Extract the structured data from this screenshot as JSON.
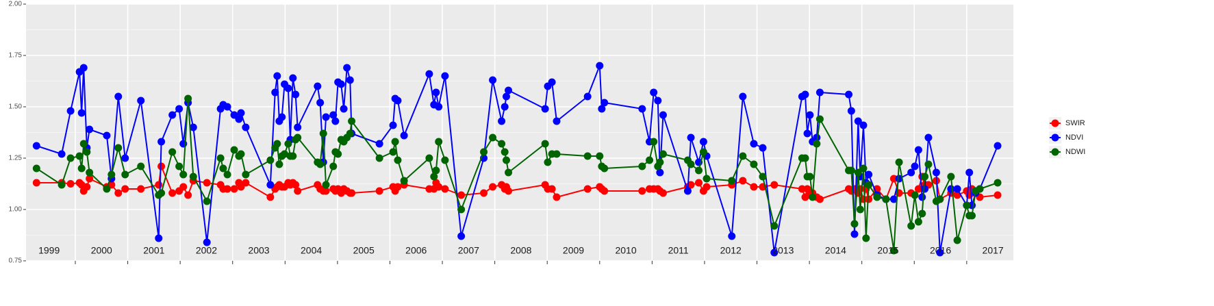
{
  "chart_data": {
    "type": "line",
    "x": [
      1999.26,
      1999.74,
      1999.91,
      2000.08,
      2000.12,
      2000.16,
      2000.22,
      2000.27,
      2000.6,
      2000.69,
      2000.82,
      2000.95,
      2001.25,
      2001.59,
      2001.64,
      2001.85,
      2001.98,
      2002.06,
      2002.15,
      2002.25,
      2002.51,
      2002.77,
      2002.82,
      2002.9,
      2003.03,
      2003.12,
      2003.16,
      2003.25,
      2003.72,
      2003.81,
      2003.85,
      2003.89,
      2003.94,
      2003.99,
      2004.06,
      2004.1,
      2004.15,
      2004.2,
      2004.24,
      2004.62,
      2004.67,
      2004.73,
      2004.78,
      2004.92,
      2004.96,
      2005.01,
      2005.07,
      2005.12,
      2005.18,
      2005.24,
      2005.27,
      2005.8,
      2006.06,
      2006.1,
      2006.15,
      2006.27,
      2006.75,
      2006.84,
      2006.88,
      2006.93,
      2007.05,
      2007.36,
      2007.79,
      2007.96,
      2008.13,
      2008.19,
      2008.22,
      2008.26,
      2008.96,
      2009.01,
      2009.09,
      2009.18,
      2009.77,
      2010.0,
      2010.04,
      2010.09,
      2010.81,
      2010.95,
      2011.03,
      2011.11,
      2011.15,
      2011.21,
      2011.68,
      2011.74,
      2011.89,
      2011.98,
      2012.04,
      2012.52,
      2012.73,
      2012.94,
      2013.11,
      2013.33,
      2013.86,
      2013.92,
      2013.96,
      2014.01,
      2014.06,
      2014.14,
      2014.2,
      2014.75,
      2014.8,
      2014.86,
      2014.93,
      2014.97,
      2015.03,
      2015.08,
      2015.13,
      2015.29,
      2015.46,
      2015.61,
      2015.71,
      2015.94,
      2016.01,
      2016.08,
      2016.15,
      2016.2,
      2016.27,
      2016.42,
      2016.49,
      2016.7,
      2016.82,
      2017.0,
      2017.05,
      2017.1,
      2017.17,
      2017.25,
      2017.59
    ],
    "series": [
      {
        "name": "SWIR",
        "color": "#ff0000",
        "values": [
          1.13,
          1.13,
          1.125,
          1.13,
          1.12,
          1.09,
          1.11,
          1.15,
          1.11,
          1.12,
          1.08,
          1.1,
          1.1,
          1.12,
          1.21,
          1.08,
          1.09,
          1.11,
          1.07,
          1.14,
          1.13,
          1.12,
          1.1,
          1.1,
          1.1,
          1.13,
          1.11,
          1.13,
          1.06,
          1.1,
          1.11,
          1.12,
          1.11,
          1.11,
          1.13,
          1.12,
          1.13,
          1.12,
          1.09,
          1.12,
          1.1,
          1.09,
          1.09,
          1.1,
          1.09,
          1.1,
          1.08,
          1.1,
          1.09,
          1.08,
          1.08,
          1.09,
          1.11,
          1.09,
          1.11,
          1.12,
          1.1,
          1.1,
          1.13,
          1.11,
          1.1,
          1.07,
          1.08,
          1.11,
          1.12,
          1.1,
          1.11,
          1.09,
          1.12,
          1.1,
          1.1,
          1.06,
          1.1,
          1.11,
          1.1,
          1.09,
          1.09,
          1.1,
          1.1,
          1.1,
          1.09,
          1.08,
          1.11,
          1.12,
          1.13,
          1.09,
          1.11,
          1.12,
          1.14,
          1.11,
          1.11,
          1.12,
          1.1,
          1.06,
          1.1,
          1.07,
          1.08,
          1.06,
          1.05,
          1.1,
          1.09,
          1.1,
          1.08,
          1.1,
          1.05,
          1.1,
          1.05,
          1.1,
          1.05,
          1.15,
          1.08,
          1.08,
          1.07,
          1.1,
          1.16,
          1.12,
          1.12,
          1.14,
          1.05,
          1.08,
          1.07,
          1.09,
          1.07,
          1.1,
          1.08,
          1.06,
          1.07
        ]
      },
      {
        "name": "NDVI",
        "color": "#0000ff",
        "values": [
          1.31,
          1.27,
          1.48,
          1.67,
          1.47,
          1.69,
          1.3,
          1.39,
          1.36,
          1.15,
          1.55,
          1.25,
          1.53,
          0.86,
          1.33,
          1.46,
          1.49,
          1.32,
          1.52,
          1.4,
          0.84,
          1.49,
          1.51,
          1.5,
          1.46,
          1.44,
          1.47,
          1.4,
          1.12,
          1.57,
          1.65,
          1.43,
          1.45,
          1.61,
          1.59,
          1.34,
          1.64,
          1.56,
          1.4,
          1.6,
          1.52,
          1.23,
          1.45,
          1.46,
          1.43,
          1.62,
          1.61,
          1.49,
          1.69,
          1.63,
          1.37,
          1.32,
          1.41,
          1.54,
          1.53,
          1.36,
          1.66,
          1.51,
          1.57,
          1.5,
          1.65,
          0.87,
          1.25,
          1.63,
          1.43,
          1.5,
          1.55,
          1.58,
          1.49,
          1.6,
          1.62,
          1.43,
          1.55,
          1.7,
          1.49,
          1.52,
          1.49,
          1.33,
          1.57,
          1.53,
          1.18,
          1.46,
          1.09,
          1.35,
          1.23,
          1.33,
          1.26,
          0.87,
          1.55,
          1.32,
          1.3,
          0.79,
          1.55,
          1.56,
          1.37,
          1.46,
          1.33,
          1.35,
          1.57,
          1.56,
          1.48,
          0.88,
          1.43,
          1.16,
          1.41,
          1.13,
          1.17,
          1.07,
          1.05,
          1.05,
          1.15,
          1.18,
          1.21,
          1.29,
          1.06,
          1.1,
          1.35,
          1.18,
          0.79,
          1.1,
          1.1,
          1.02,
          1.18,
          1.02,
          1.08,
          1.1,
          1.31
        ]
      },
      {
        "name": "NDWI",
        "color": "#006400",
        "values": [
          1.2,
          1.12,
          1.25,
          1.26,
          1.2,
          1.32,
          1.28,
          1.18,
          1.1,
          1.17,
          1.3,
          1.17,
          1.21,
          1.07,
          1.08,
          1.28,
          1.21,
          1.17,
          1.54,
          1.16,
          1.04,
          1.25,
          1.2,
          1.17,
          1.29,
          1.26,
          1.27,
          1.17,
          1.24,
          1.3,
          1.32,
          1.22,
          1.26,
          1.27,
          1.32,
          1.26,
          1.26,
          1.34,
          1.35,
          1.23,
          1.22,
          1.37,
          1.12,
          1.21,
          1.28,
          1.27,
          1.34,
          1.33,
          1.35,
          1.37,
          1.43,
          1.25,
          1.28,
          1.33,
          1.24,
          1.14,
          1.25,
          1.16,
          1.19,
          1.33,
          1.24,
          1.0,
          1.28,
          1.35,
          1.32,
          1.28,
          1.24,
          1.18,
          1.32,
          1.23,
          1.27,
          1.27,
          1.26,
          1.26,
          1.21,
          1.2,
          1.21,
          1.24,
          1.33,
          1.21,
          1.23,
          1.27,
          1.24,
          1.22,
          1.19,
          1.28,
          1.15,
          1.14,
          1.26,
          1.22,
          1.16,
          0.92,
          1.25,
          1.25,
          1.16,
          1.16,
          1.06,
          1.32,
          1.44,
          1.19,
          1.19,
          0.93,
          1.18,
          1.0,
          1.2,
          0.86,
          1.12,
          1.06,
          1.05,
          0.8,
          1.23,
          0.92,
          1.07,
          0.94,
          0.98,
          1.16,
          1.22,
          1.04,
          1.05,
          1.16,
          0.85,
          1.02,
          0.97,
          0.97,
          1.09,
          1.1,
          1.13
        ]
      }
    ],
    "xlim": [
      1999.06,
      2017.89
    ],
    "xticks": [
      {
        "value": 1999.5,
        "label": "1999"
      },
      {
        "value": 2000.5,
        "label": "2000"
      },
      {
        "value": 2001.5,
        "label": "2001"
      },
      {
        "value": 2002.5,
        "label": "2002"
      },
      {
        "value": 2003.5,
        "label": "2003"
      },
      {
        "value": 2004.5,
        "label": "2004"
      },
      {
        "value": 2005.5,
        "label": "2005"
      },
      {
        "value": 2006.5,
        "label": "2006"
      },
      {
        "value": 2007.5,
        "label": "2007"
      },
      {
        "value": 2008.5,
        "label": "2008"
      },
      {
        "value": 2009.5,
        "label": "2009"
      },
      {
        "value": 2010.5,
        "label": "2010"
      },
      {
        "value": 2011.5,
        "label": "2011"
      },
      {
        "value": 2012.5,
        "label": "2012"
      },
      {
        "value": 2013.5,
        "label": "2013"
      },
      {
        "value": 2014.5,
        "label": "2014"
      },
      {
        "value": 2015.5,
        "label": "2015"
      },
      {
        "value": 2016.5,
        "label": "2016"
      },
      {
        "value": 2017.5,
        "label": "2017"
      }
    ],
    "xgrid": [
      2000,
      2001,
      2002,
      2003,
      2004,
      2005,
      2006,
      2007,
      2008,
      2009,
      2010,
      2011,
      2012,
      2013,
      2014,
      2015,
      2016,
      2017
    ],
    "ylim": [
      0.75,
      2.0
    ],
    "yticks": [
      0.75,
      {
        "value": 1,
        "label": "1.00"
      },
      1.25,
      {
        "value": 1.5,
        "label": "1.50"
      },
      1.75,
      {
        "value": 2,
        "label": "2.00"
      }
    ],
    "yminor": [
      0.875,
      1.125,
      1.375,
      1.625,
      1.875
    ],
    "grid": true,
    "legend": "right"
  }
}
